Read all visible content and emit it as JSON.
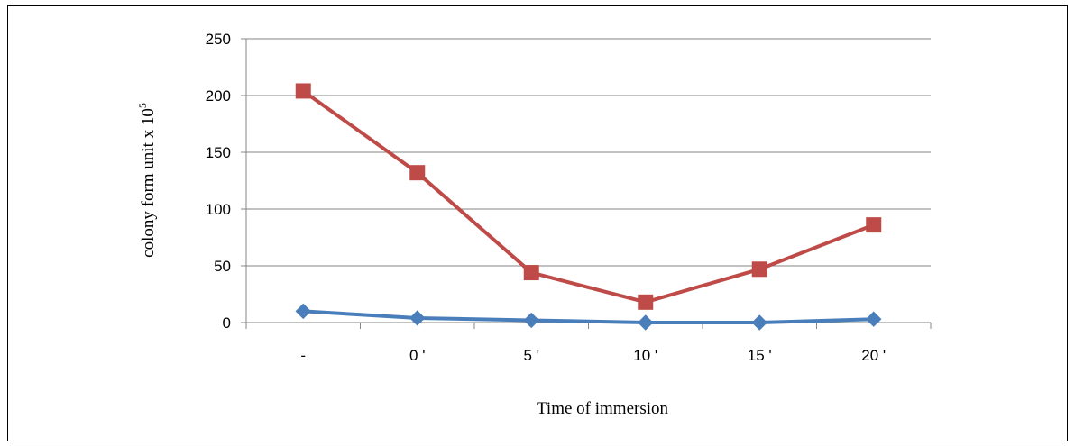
{
  "chart_data": {
    "type": "line",
    "categories": [
      "-",
      "0 '",
      "5 '",
      "10 '",
      "15 '",
      "20 '"
    ],
    "series": [
      {
        "values": [
          10,
          4,
          2,
          0,
          0,
          3
        ],
        "color": "#4a7ebb",
        "marker": "diamond"
      },
      {
        "values": [
          204,
          132,
          44,
          18,
          47,
          86
        ],
        "color": "#be4b48",
        "marker": "square"
      }
    ],
    "title": "",
    "xlabel": "Time of immersion",
    "ylabel": "colony form unit  x 10",
    "ylabel_superscript": "5",
    "ylim": [
      0,
      250
    ],
    "yticks": [
      0,
      50,
      100,
      150,
      200,
      250
    ],
    "grid": true,
    "gridline_color": "#868686",
    "legend": "none"
  }
}
